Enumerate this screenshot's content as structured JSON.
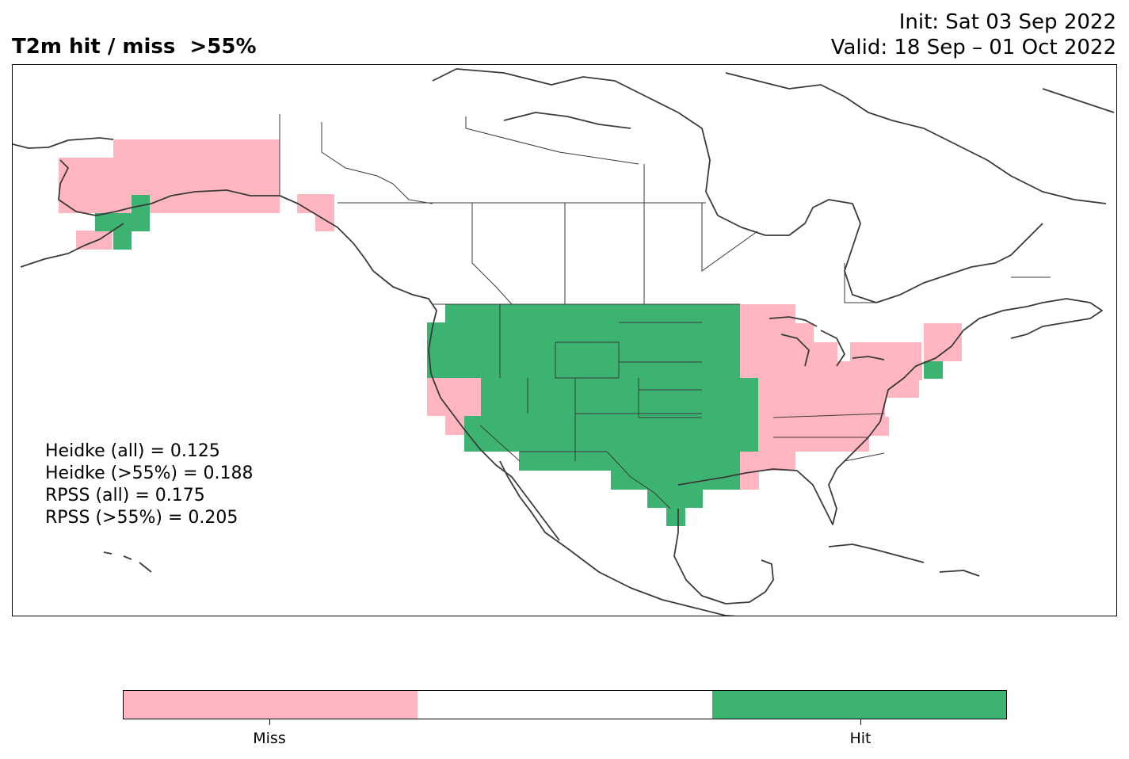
{
  "title": "T2m hit / miss  >55%",
  "init": "Init: Sat 03 Sep 2022",
  "valid": "Valid: 18 Sep – 01 Oct 2022",
  "stats": [
    "Heidke (all) = 0.125",
    "Heidke (>55%) = 0.188",
    "RPSS (all) = 0.175",
    "RPSS (>55%) = 0.205"
  ],
  "colors": {
    "miss": "#ffb6c1",
    "neutral": "#ffffff",
    "hit": "#3cb371",
    "coast": "#3a3a3a"
  },
  "legend": {
    "miss_label": "Miss",
    "hit_label": "Hit"
  }
}
